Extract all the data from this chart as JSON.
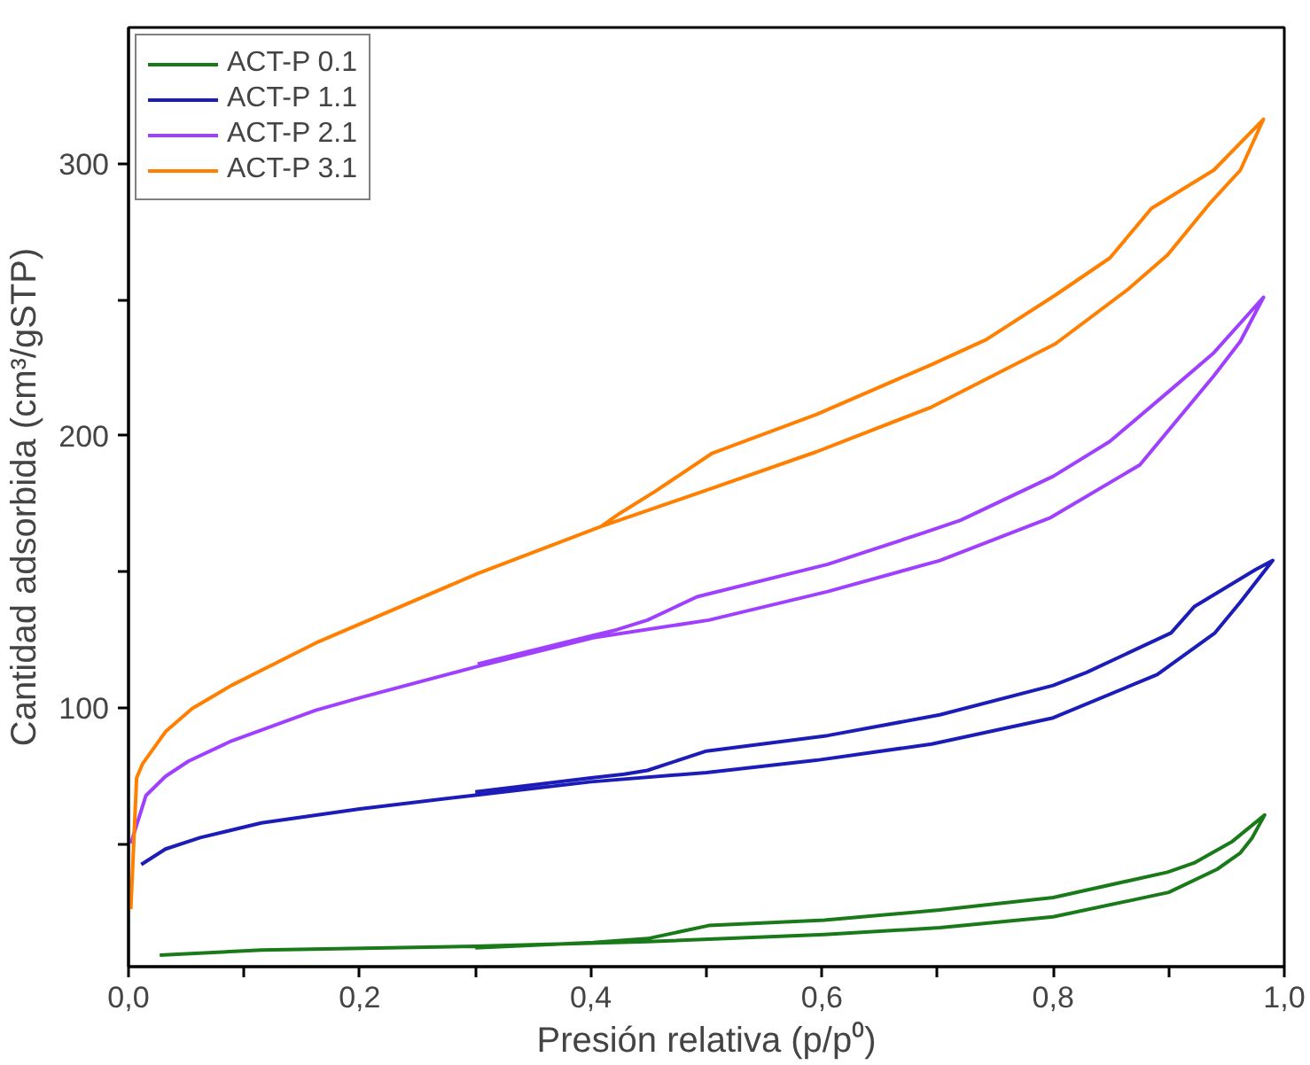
{
  "chart_data": {
    "type": "line",
    "xlabel": "Presión relativa (p/p⁰)",
    "ylabel": "Cantidad adsorbida (cm³/gSTP)",
    "xlim": [
      0,
      1.0
    ],
    "ylim": [
      5,
      350
    ],
    "xticks": [
      {
        "value": 0,
        "label": "0,0"
      },
      {
        "value": 0.1,
        "label": null
      },
      {
        "value": 0.2,
        "label": "0,2"
      },
      {
        "value": 0.3,
        "label": null
      },
      {
        "value": 0.4,
        "label": "0,4"
      },
      {
        "value": 0.5,
        "label": null
      },
      {
        "value": 0.6,
        "label": "0,6"
      },
      {
        "value": 0.7,
        "label": null
      },
      {
        "value": 0.8,
        "label": "0,8"
      },
      {
        "value": 0.9,
        "label": null
      },
      {
        "value": 1.0,
        "label": "1,0"
      }
    ],
    "yticks": [
      {
        "value": 50,
        "label": null
      },
      100,
      {
        "value": 150,
        "label": null
      },
      200,
      {
        "value": 250,
        "label": null
      },
      300
    ],
    "grid": false,
    "legend": "top left",
    "marker": "none",
    "line_style": "solid",
    "series": [
      {
        "name": "ACT-P 0.1",
        "color": "#1a7a1a",
        "x": [
          0.027,
          0.115,
          0.3,
          0.449,
          0.602,
          0.702,
          0.8,
          0.9,
          0.942,
          0.962,
          0.972,
          0.983,
          0.955,
          0.922,
          0.899,
          0.8,
          0.702,
          0.602,
          0.502,
          0.449,
          0.402,
          0.3
        ],
        "values": [
          9.2,
          11.1,
          12.5,
          14.2,
          16.8,
          19.3,
          23.3,
          32.3,
          40.8,
          46.8,
          52.2,
          60.7,
          51,
          43.1,
          39.7,
          30.4,
          25.8,
          22.1,
          20.1,
          15.3,
          13.9,
          11.9
        ]
      },
      {
        "name": "ACT-P 1.1",
        "color": "#1c1cb8",
        "x": [
          0.011,
          0.032,
          0.062,
          0.115,
          0.2,
          0.3,
          0.4,
          0.5,
          0.595,
          0.695,
          0.8,
          0.89,
          0.94,
          0.962,
          0.99,
          0.975,
          0.922,
          0.902,
          0.829,
          0.8,
          0.702,
          0.605,
          0.5,
          0.449,
          0.429,
          0.4,
          0.3
        ],
        "values": [
          42.5,
          48.2,
          52.4,
          57.8,
          62.9,
          68,
          72.9,
          76.3,
          80.8,
          86.8,
          96.4,
          112.3,
          127.6,
          138.9,
          154.2,
          150.8,
          137.2,
          127.6,
          113.1,
          108.3,
          97.5,
          89.9,
          84.2,
          77.1,
          75.7,
          74.3,
          69.2
        ]
      },
      {
        "name": "ACT-P 2.1",
        "color": "#a040ff",
        "x": [
          0.002,
          0.015,
          0.032,
          0.052,
          0.089,
          0.162,
          0.202,
          0.302,
          0.402,
          0.502,
          0.605,
          0.702,
          0.798,
          0.875,
          0.939,
          0.962,
          0.982,
          0.939,
          0.902,
          0.849,
          0.8,
          0.72,
          0.689,
          0.605,
          0.492,
          0.449,
          0.422,
          0.402,
          0.302
        ],
        "values": [
          50.2,
          67.8,
          74.9,
          80.5,
          87.9,
          99.2,
          104,
          115.3,
          125.8,
          132.3,
          142.8,
          154.2,
          170,
          189.3,
          222,
          234.7,
          250.9,
          230.5,
          217,
          197.9,
          185.1,
          169,
          164.5,
          152.8,
          140.9,
          132.3,
          128.7,
          126.7,
          116.2
        ]
      },
      {
        "name": "ACT-P 3.1",
        "color": "#ff8000",
        "x": [
          0.002,
          0.007,
          0.012,
          0.032,
          0.055,
          0.089,
          0.162,
          0.302,
          0.409,
          0.502,
          0.595,
          0.695,
          0.802,
          0.865,
          0.899,
          0.935,
          0.962,
          0.982,
          0.939,
          0.885,
          0.849,
          0.802,
          0.742,
          0.695,
          0.595,
          0.505,
          0.455,
          0.425,
          0.409
        ],
        "values": [
          26.1,
          74.3,
          79.4,
          91.3,
          99.8,
          108.3,
          123.9,
          149.4,
          166.7,
          180.3,
          194.1,
          210.6,
          233.8,
          253.9,
          266.4,
          285.1,
          297.6,
          316.3,
          297.6,
          283.5,
          265.3,
          251.7,
          235.3,
          226.2,
          207.8,
          193.6,
          179.4,
          171.5,
          166.7
        ]
      }
    ]
  }
}
